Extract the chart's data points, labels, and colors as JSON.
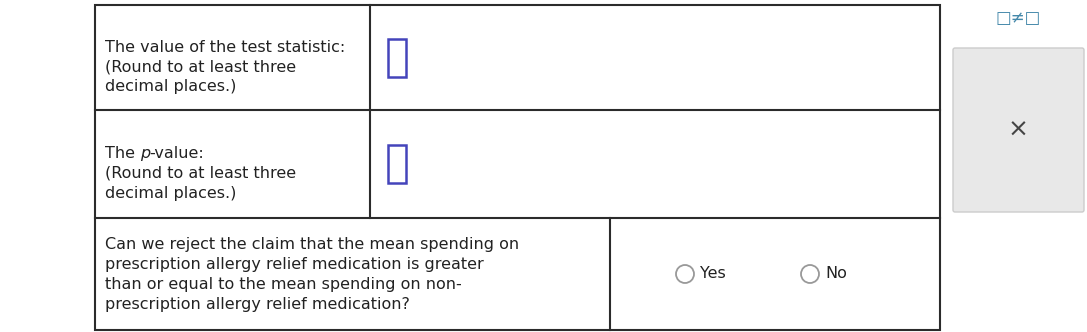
{
  "background_color": "#ffffff",
  "border_color": "#2b2b2b",
  "row1_text_line1": "The value of the test statistic:",
  "row1_text_line2": "(Round to at least three",
  "row1_text_line3": "decimal places.)",
  "row2_text_line1": "The ’p’-value:",
  "row2_text_line2": "(Round to at least three",
  "row2_text_line3": "decimal places.)",
  "row3_text_line1": "Can we reject the claim that the mean spending on",
  "row3_text_line2": "prescription allergy relief medication is greater",
  "row3_text_line3": "than or equal to the mean spending on non-",
  "row3_text_line4": "prescription allergy relief medication?",
  "yes_label": "Yes",
  "no_label": "No",
  "input_box_color": "#4444bb",
  "font_size": 11.5,
  "right_panel_symbol": "□≠□",
  "close_button_text": "×",
  "circle_color": "#aaaaaa"
}
